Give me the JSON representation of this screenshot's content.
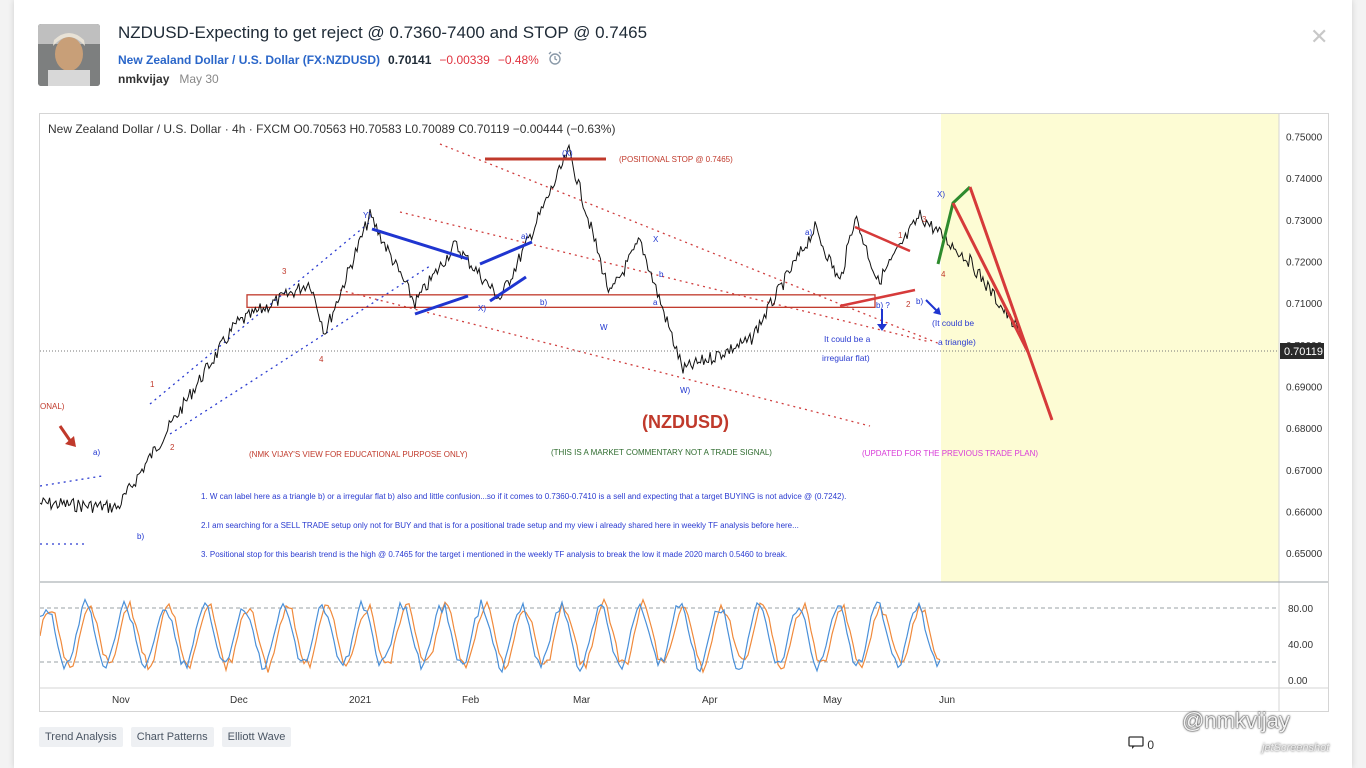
{
  "header": {
    "title": "NZDUSD-Expecting to get reject @ 0.7360-7400 and STOP @ 0.7465",
    "symbol": "New Zealand Dollar / U.S. Dollar (FX:NZDUSD)",
    "price": "0.70141",
    "change": "−0.00339",
    "change_pct": "−0.48%",
    "author": "nmkvijay",
    "date": "May 30"
  },
  "chart": {
    "legend": "New Zealand Dollar / U.S. Dollar · 4h · FXCM  O0.70563 H0.70583 L0.70089 C0.70119 −0.00444 (−0.63%)",
    "current_price_label": "0.70119",
    "annotations": {
      "positional_stop": "(POSITIONAL STOP @ 0.7465)",
      "symbol_big": "(NZDUSD)",
      "educational": "(NMK VIJAY'S VIEW FOR EDUCATIONAL PURPOSE ONLY)",
      "commentary": "(THIS IS A MARKET COMMENTARY NOT A TRADE SIGNAL)",
      "updated": "(UPDATED FOR THE PREVIOUS TRADE PLAN)",
      "note1": "1. W can label here as a triangle b) or a irregular flat b) also and little confusion...so if it comes to 0.7360-0.7410 is a sell and expecting that a target BUYING is not advice @ (0.7242).",
      "note2": "2.I am searching for a SELL TRADE setup only not for BUY and that is for a positional trade setup and my view i already shared here in weekly TF analysis before here...",
      "note3": "3. Positional stop for this bearish trend is the high @ 0.7465 for the target i mentioned in the weekly TF analysis to break the low  it made 2020 march 0.5460 to break.",
      "irregular_1": "It could be a",
      "irregular_2": "irregular flat)",
      "triangle_1": "(It could be",
      "triangle_2": "a triangle)",
      "left_cut": "ONAL)"
    },
    "wave_labels": [
      "Y)",
      "(X)",
      "a)",
      "b)",
      "X",
      "W",
      "X)",
      "a",
      "b",
      "W)",
      "a)",
      "X)",
      "1",
      "2",
      "3",
      "4",
      "b) ?",
      "b)",
      "1",
      "2",
      "3",
      "4",
      "a)",
      "b)"
    ],
    "chart_data": {
      "type": "line",
      "price_axis": [
        "0.75000",
        "0.74000",
        "0.73000",
        "0.72000",
        "0.71000",
        "0.70000",
        "0.69000",
        "0.68000",
        "0.67000",
        "0.66000",
        "0.65000"
      ],
      "osc_axis": [
        "80.00",
        "40.00",
        "0.00"
      ],
      "time_axis": [
        "Nov",
        "Dec",
        "2021",
        "Feb",
        "Mar",
        "Apr",
        "May",
        "Jun"
      ],
      "ylim": [
        0.645,
        0.753
      ],
      "key_points": [
        {
          "x": "Oct 10",
          "y": 0.662
        },
        {
          "x": "Nov 1",
          "y": 0.661
        },
        {
          "x": "Nov 18",
          "y": 0.688
        },
        {
          "x": "Dec 1",
          "y": 0.705
        },
        {
          "x": "Dec 23",
          "y": 0.715
        },
        {
          "x": "Dec 28",
          "y": 0.703
        },
        {
          "x": "Jan 6",
          "y": 0.731
        },
        {
          "x": "Jan 18",
          "y": 0.71
        },
        {
          "x": "Jan 26",
          "y": 0.724
        },
        {
          "x": "Feb 5",
          "y": 0.711
        },
        {
          "x": "Feb 16",
          "y": 0.726
        },
        {
          "x": "Feb 25",
          "y": 0.7465
        },
        {
          "x": "Mar 5",
          "y": 0.712
        },
        {
          "x": "Mar 18",
          "y": 0.725
        },
        {
          "x": "Mar 31",
          "y": 0.694
        },
        {
          "x": "Apr 12",
          "y": 0.701
        },
        {
          "x": "Apr 28",
          "y": 0.728
        },
        {
          "x": "May 5",
          "y": 0.715
        },
        {
          "x": "May 10",
          "y": 0.731
        },
        {
          "x": "May 19",
          "y": 0.715
        },
        {
          "x": "May 26",
          "y": 0.731
        },
        {
          "x": "Jun 7",
          "y": 0.72
        },
        {
          "x": "Jun 18",
          "y": 0.701
        }
      ],
      "resistance_zone": [
        0.709,
        0.712
      ],
      "stop_level": 0.7465,
      "projection_high": 0.741,
      "projection_target": 0.685
    }
  },
  "tags": [
    "Trend Analysis",
    "Chart Patterns",
    "Elliott Wave"
  ],
  "footer": {
    "comments_count": "0",
    "watermark": "@nmkvijay",
    "watermark_small": "jetScreenshot"
  },
  "colors": {
    "accent": "#2a66c9",
    "negative": "#e0333f",
    "wave_blue": "#1f35d0",
    "annot_red": "#c0392b",
    "projection_red": "#d63a3a",
    "projection_green": "#2e8b2e",
    "highlight": "#fdfcd4"
  }
}
